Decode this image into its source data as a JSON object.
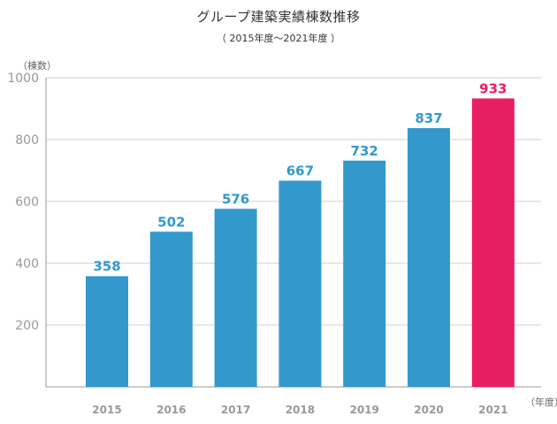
{
  "chart_data": {
    "type": "bar",
    "title": "グループ建築実績棟数推移",
    "subtitle": "（ 2015年度～2021年度 ）",
    "ylabel": "（棟数）",
    "xlabel": "（年度）",
    "categories": [
      "2015",
      "2016",
      "2017",
      "2018",
      "2019",
      "2020",
      "2021"
    ],
    "values": [
      358,
      502,
      576,
      667,
      732,
      837,
      933
    ],
    "data_labels": [
      "358",
      "502",
      "576",
      "667",
      "732",
      "837",
      "933"
    ],
    "ylim": [
      0,
      1000
    ],
    "yticks": [
      200,
      400,
      600,
      800,
      1000
    ],
    "ytick_labels": [
      "200",
      "400",
      "600",
      "800",
      "1000"
    ],
    "grid": true,
    "legend": "none",
    "colors": {
      "bar": "#3399cc",
      "highlight_bar": "#e81e63",
      "highlight_index": 6,
      "label": "#3399cc",
      "highlight_label": "#e81e63",
      "grid": "#d0d0d0",
      "axis": "#999999",
      "tick_text": "#999999"
    }
  }
}
